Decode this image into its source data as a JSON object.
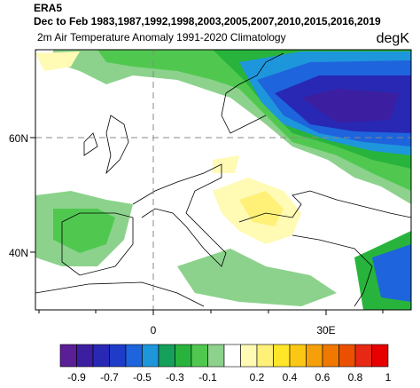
{
  "header": {
    "source": "ERA5",
    "period": "Dec to Feb 1983,1987,1992,1998,2003,2005,2007,2010,2015,2016,2019",
    "subtitle": "2m Air Temperature Anomaly  1991-2020 Climatology",
    "units": "degK"
  },
  "map": {
    "lat_labels": [
      "60N",
      "40N"
    ],
    "lon_labels": [
      "0",
      "30E"
    ]
  },
  "colorbar": {
    "labels": [
      -0.9,
      -0.7,
      -0.5,
      -0.3,
      -0.1,
      0.2,
      0.4,
      0.6,
      0.8,
      1
    ],
    "colors": [
      "#5a1e96",
      "#3c1ea0",
      "#2828b4",
      "#1e3cc8",
      "#1e64dc",
      "#1e96dc",
      "#14a05a",
      "#28b43c",
      "#50c850",
      "#8cd28c",
      "#ffffff",
      "#fffab4",
      "#fff078",
      "#ffe628",
      "#fac814",
      "#f5a00a",
      "#f07800",
      "#eb5000",
      "#e62814",
      "#e60000"
    ]
  }
}
